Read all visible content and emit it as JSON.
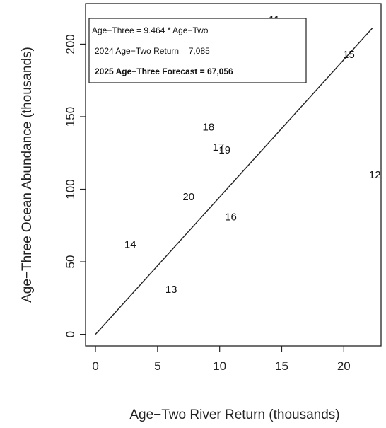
{
  "chart_data": {
    "type": "scatter",
    "title": "",
    "xlabel": "Age−Two River Return (thousands)",
    "ylabel": "Age−Three Ocean Abundance (thousands)",
    "xlim": [
      -0.8,
      23
    ],
    "ylim": [
      -8,
      228
    ],
    "x_ticks": [
      0,
      5,
      10,
      15,
      20
    ],
    "y_ticks": [
      0,
      50,
      100,
      150,
      200
    ],
    "grid": false,
    "points": [
      {
        "label": "11",
        "x": 14.4,
        "y": 217
      },
      {
        "label": "12",
        "x": 22.5,
        "y": 110
      },
      {
        "label": "13",
        "x": 6.1,
        "y": 31
      },
      {
        "label": "14",
        "x": 2.8,
        "y": 62
      },
      {
        "label": "15",
        "x": 20.4,
        "y": 193
      },
      {
        "label": "16",
        "x": 10.9,
        "y": 81
      },
      {
        "label": "17",
        "x": 9.9,
        "y": 129
      },
      {
        "label": "18",
        "x": 9.1,
        "y": 143
      },
      {
        "label": "19",
        "x": 10.4,
        "y": 127
      },
      {
        "label": "20",
        "x": 7.5,
        "y": 95
      }
    ],
    "fit_line": {
      "slope": 9.464,
      "intercept": 0,
      "x_range": [
        0,
        22.3
      ]
    },
    "legend": {
      "placement": "top-left",
      "lines": [
        "Age−Three = 9.464 * Age−Two",
        "2024 Age−Two Return = 7,085",
        "2025 Age−Three Forecast = 67,056"
      ]
    }
  }
}
